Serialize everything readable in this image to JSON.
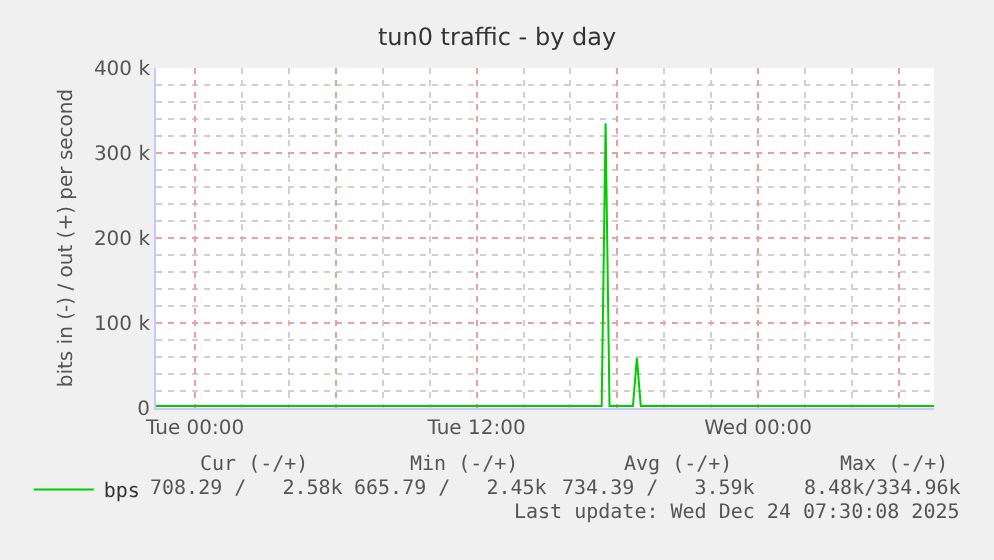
{
  "chart_data": {
    "type": "line",
    "title": "tun0 traffic - by day",
    "ylabel": "bits in (-) / out (+) per second",
    "x": [
      "2025-12-22T22:20",
      "2025-12-23T00:00",
      "2025-12-23T03:00",
      "2025-12-23T06:00",
      "2025-12-23T09:00",
      "2025-12-23T12:00",
      "2025-12-23T15:00",
      "2025-12-23T17:20",
      "2025-12-23T17:30",
      "2025-12-23T17:40",
      "2025-12-23T18:40",
      "2025-12-23T18:50",
      "2025-12-23T19:00",
      "2025-12-23T21:00",
      "2025-12-24T00:00",
      "2025-12-24T03:00",
      "2025-12-24T06:00",
      "2025-12-24T07:30"
    ],
    "series": [
      {
        "name": "bps",
        "color": "#00cc00",
        "values": [
          2500,
          2500,
          2500,
          2500,
          2500,
          2500,
          2500,
          2500,
          335000,
          2500,
          2500,
          59000,
          2500,
          2500,
          2500,
          2500,
          2500,
          2500
        ]
      }
    ],
    "xlim": [
      "2025-12-22T22:20",
      "2025-12-24T07:30"
    ],
    "xticks": [
      {
        "value": "2025-12-23T00:00",
        "label": "Tue 00:00"
      },
      {
        "value": "2025-12-23T06:00",
        "label": null
      },
      {
        "value": "2025-12-23T12:00",
        "label": "Tue 12:00"
      },
      {
        "value": "2025-12-23T18:00",
        "label": null
      },
      {
        "value": "2025-12-24T00:00",
        "label": "Wed 00:00"
      },
      {
        "value": "2025-12-24T06:00",
        "label": null
      }
    ],
    "ylim": [
      0,
      400000
    ],
    "yticks": [
      {
        "value": 0,
        "label": "0"
      },
      {
        "value": 100000,
        "label": "100 k"
      },
      {
        "value": 200000,
        "label": "200 k"
      },
      {
        "value": 300000,
        "label": "300 k"
      },
      {
        "value": 400000,
        "label": "400 k"
      }
    ],
    "grid": true,
    "legend": "bottom left",
    "marker": "none",
    "line_style": "solid",
    "annotations": [
      "Cur (-/+)",
      "Min (-/+)",
      "Avg (-/+)",
      "Max (-/+)",
      "708.29 /   2.58k",
      "665.79 /   2.45k",
      "734.39 /   3.59k",
      "8.48k/334.96k",
      "Last update: Wed Dec 24 07:30:08 2025"
    ]
  }
}
